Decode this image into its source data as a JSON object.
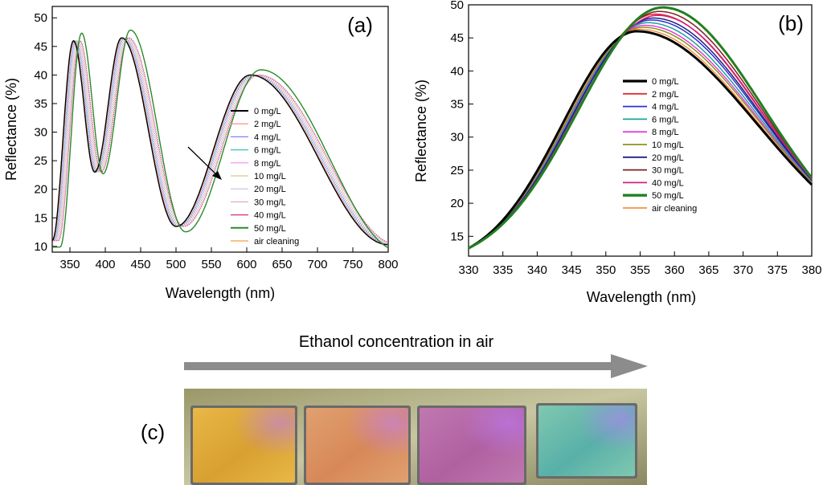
{
  "chart_data": [
    {
      "id": "a",
      "type": "line",
      "panel_label": "(a)",
      "xlabel": "Wavelength (nm)",
      "ylabel": "Reflectance (%)",
      "xlim": [
        325,
        800
      ],
      "ylim": [
        9,
        52
      ],
      "xticks": [
        350,
        400,
        450,
        500,
        550,
        600,
        650,
        700,
        750,
        800
      ],
      "yticks": [
        10,
        15,
        20,
        25,
        30,
        35,
        40,
        45,
        50
      ],
      "legend_position": "center-right",
      "annotation": "arrow pointing down-right indicating red-shift with increasing concentration",
      "series": [
        {
          "name": "0 mg/L",
          "color": "#000000",
          "shift": 0
        },
        {
          "name": "2 mg/L",
          "color": "#ff8080",
          "shift": 1.2
        },
        {
          "name": "4 mg/L",
          "color": "#8080ff",
          "shift": 2.4
        },
        {
          "name": "6 mg/L",
          "color": "#40c0c0",
          "shift": 3.6
        },
        {
          "name": "8 mg/L",
          "color": "#ff80ff",
          "shift": 4.8
        },
        {
          "name": "10 mg/L",
          "color": "#d0d080",
          "shift": 6.0
        },
        {
          "name": "20 mg/L",
          "color": "#c0c0e0",
          "shift": 7.2
        },
        {
          "name": "30 mg/L",
          "color": "#e0b0b0",
          "shift": 8.4
        },
        {
          "name": "40 mg/L",
          "color": "#d03080",
          "shift": 9.6
        },
        {
          "name": "50 mg/L",
          "color": "#2a8a2a",
          "shift": 12.0
        },
        {
          "name": "air cleaning",
          "color": "#f0a040",
          "shift": 0.6
        }
      ],
      "peaks": [
        {
          "wavelength": 355,
          "reflectance": 46
        },
        {
          "wavelength": 423,
          "reflectance": 46.5
        },
        {
          "wavelength": 605,
          "reflectance": 40
        }
      ]
    },
    {
      "id": "b",
      "type": "line",
      "panel_label": "(b)",
      "xlabel": "Wavelength (nm)",
      "ylabel": "Reflectance (%)",
      "xlim": [
        330,
        380
      ],
      "ylim": [
        12,
        50
      ],
      "xticks": [
        330,
        335,
        340,
        345,
        350,
        355,
        360,
        365,
        370,
        375,
        380
      ],
      "yticks": [
        15,
        20,
        25,
        30,
        35,
        40,
        45,
        50
      ],
      "legend_position": "center",
      "series": [
        {
          "name": "0 mg/L",
          "color": "#000000",
          "peak_x": 354.5,
          "peak_y": 46.0,
          "width": 3
        },
        {
          "name": "2 mg/L",
          "color": "#e03030",
          "peak_x": 357.2,
          "peak_y": 48.6,
          "width": 1.5
        },
        {
          "name": "4 mg/L",
          "color": "#3030d0",
          "peak_x": 356.6,
          "peak_y": 47.7,
          "width": 1.5
        },
        {
          "name": "6 mg/L",
          "color": "#20a0a0",
          "peak_x": 356.1,
          "peak_y": 47.3,
          "width": 1.5
        },
        {
          "name": "8 mg/L",
          "color": "#e040e0",
          "peak_x": 355.7,
          "peak_y": 46.9,
          "width": 1.5
        },
        {
          "name": "10 mg/L",
          "color": "#909020",
          "peak_x": 355.4,
          "peak_y": 46.6,
          "width": 1.5
        },
        {
          "name": "20 mg/L",
          "color": "#202080",
          "peak_x": 356.9,
          "peak_y": 48.0,
          "width": 1.5
        },
        {
          "name": "30 mg/L",
          "color": "#802020",
          "peak_x": 357.8,
          "peak_y": 49.0,
          "width": 1.5
        },
        {
          "name": "40 mg/L",
          "color": "#d02080",
          "peak_x": 357.5,
          "peak_y": 48.4,
          "width": 1.5
        },
        {
          "name": "50 mg/L",
          "color": "#208020",
          "peak_x": 358.3,
          "peak_y": 49.6,
          "width": 3
        },
        {
          "name": "air cleaning",
          "color": "#f08020",
          "peak_x": 354.9,
          "peak_y": 46.3,
          "width": 1.2
        }
      ]
    }
  ],
  "panel_c": {
    "label": "(c)",
    "arrow_caption": "Ethanol concentration in air",
    "photos": [
      {
        "name": "0 mg/L sample",
        "color_a": "#d8a030",
        "color_b": "#e8b848"
      },
      {
        "name": "low concentration sample",
        "color_a": "#d88858",
        "color_b": "#e0a070"
      },
      {
        "name": "medium concentration sample",
        "color_a": "#b060a0",
        "color_b": "#c078b0"
      },
      {
        "name": "high concentration sample",
        "color_a": "#58b0a8",
        "color_b": "#80c8b0"
      }
    ]
  }
}
